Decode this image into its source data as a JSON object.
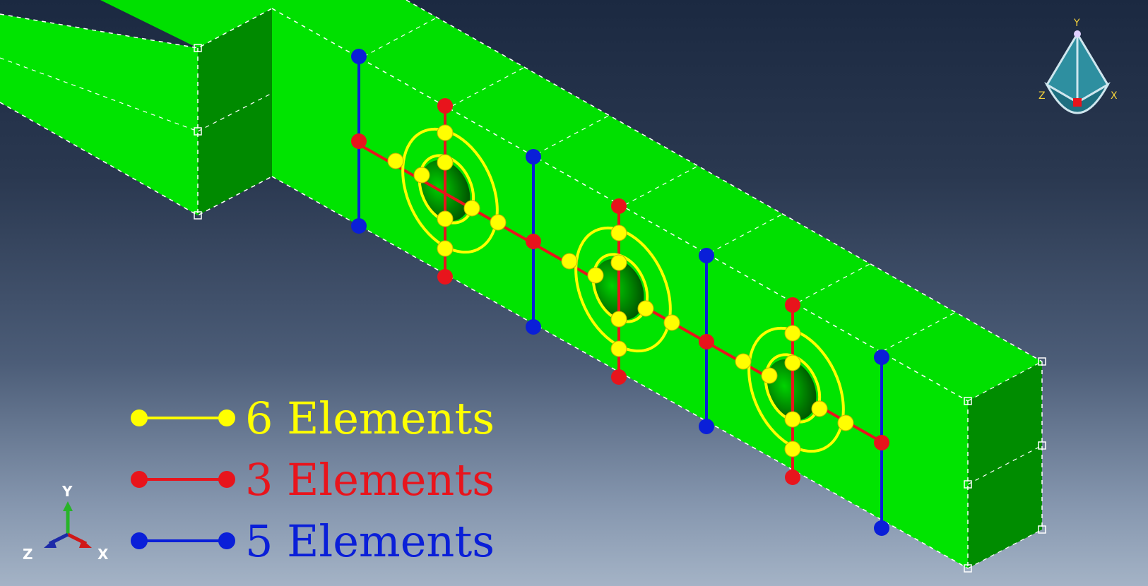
{
  "colors": {
    "six": "#ffff00",
    "three": "#e8141c",
    "five": "#0a1fd8",
    "mesh_green": "#00e400",
    "mesh_green_dark": "#008c00",
    "triad_y": "#28b428",
    "triad_x": "#d01818",
    "triad_z": "#1c2aa8",
    "view_cube": "#2e8fa0"
  },
  "legend": [
    {
      "label": "6 Elements",
      "color": "#ffff00"
    },
    {
      "label": "3 Elements",
      "color": "#e8141c"
    },
    {
      "label": "5 Elements",
      "color": "#0a1fd8"
    }
  ],
  "triad": {
    "y": "Y",
    "x": "X",
    "z": "Z"
  },
  "view_cube": {
    "y": "Y",
    "x": "X",
    "z": "Z"
  }
}
